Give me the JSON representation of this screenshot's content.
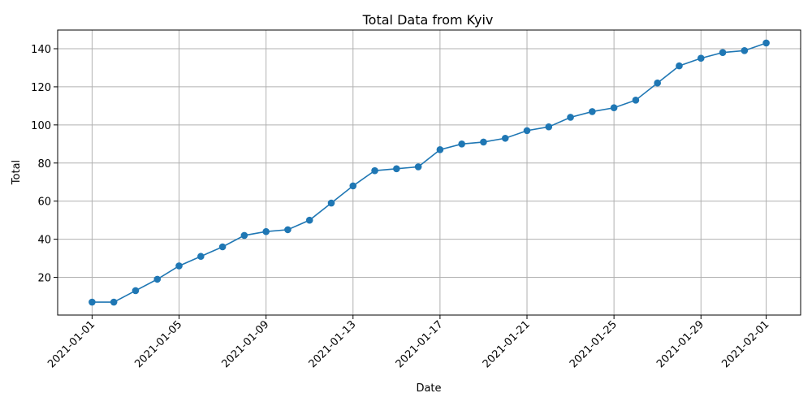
{
  "chart_data": {
    "type": "line",
    "title": "Total Data from Kyiv",
    "xlabel": "Date",
    "ylabel": "Total",
    "x": [
      "2021-01-01",
      "2021-01-02",
      "2021-01-03",
      "2021-01-04",
      "2021-01-05",
      "2021-01-06",
      "2021-01-07",
      "2021-01-08",
      "2021-01-09",
      "2021-01-10",
      "2021-01-11",
      "2021-01-12",
      "2021-01-13",
      "2021-01-14",
      "2021-01-15",
      "2021-01-16",
      "2021-01-17",
      "2021-01-18",
      "2021-01-19",
      "2021-01-20",
      "2021-01-21",
      "2021-01-22",
      "2021-01-23",
      "2021-01-24",
      "2021-01-25",
      "2021-01-26",
      "2021-01-27",
      "2021-01-28",
      "2021-01-29",
      "2021-01-30",
      "2021-01-31",
      "2021-02-01"
    ],
    "series": [
      {
        "values": [
          7,
          7,
          13,
          19,
          26,
          31,
          36,
          42,
          44,
          45,
          50,
          59,
          68,
          76,
          77,
          78,
          87,
          90,
          91,
          93,
          97,
          99,
          104,
          107,
          109,
          113,
          122,
          131,
          135,
          138,
          139,
          143
        ],
        "color": "#1f77b4",
        "marker": "circle"
      }
    ],
    "xticks": [
      "2021-01-01",
      "2021-01-05",
      "2021-01-09",
      "2021-01-13",
      "2021-01-17",
      "2021-01-21",
      "2021-01-25",
      "2021-01-29",
      "2021-02-01"
    ],
    "yticks": [
      20,
      40,
      60,
      80,
      100,
      120,
      140
    ],
    "xlim": [
      "2020-12-30 10:00",
      "2021-02-02 14:00"
    ],
    "ylim": [
      0.2,
      149.8
    ],
    "grid": true
  }
}
